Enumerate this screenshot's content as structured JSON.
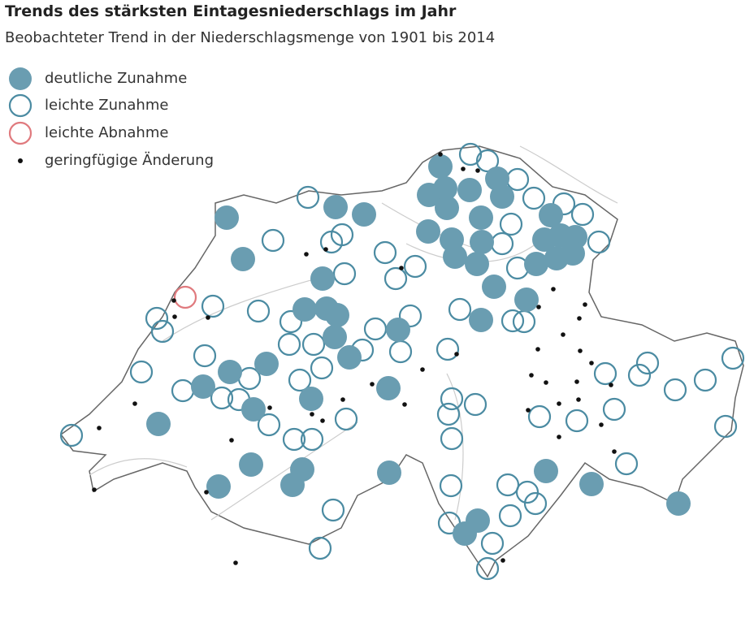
{
  "header": {
    "title": "Trends des stärksten Eintagesniederschlags im Jahr",
    "subtitle": "Beobachteter Trend in der Niederschlagsmenge von 1901 bis 2014"
  },
  "legend": [
    {
      "label": "deutliche Zunahme"
    },
    {
      "label": "leichte Zunahme"
    },
    {
      "label": "leichte Abnahme"
    },
    {
      "label": "geringfügige Änderung"
    }
  ]
}
